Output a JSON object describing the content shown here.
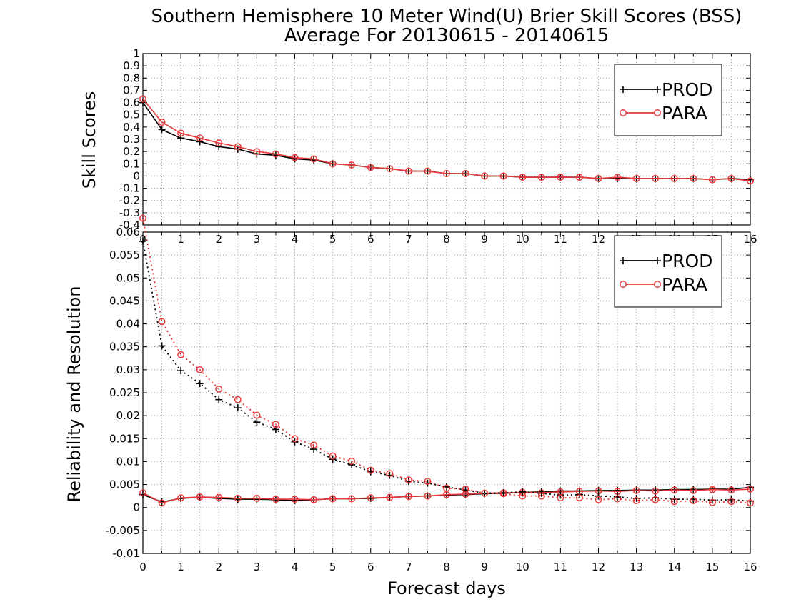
{
  "chart_data": [
    {
      "type": "line",
      "title": "Southern Hemisphere 10 Meter Wind(U) Brier Skill Scores (BSS)",
      "subtitle": "Average For 20130615 - 20140615",
      "ylabel": "Skill Scores",
      "xlabel": "",
      "xlim": [
        0,
        16
      ],
      "ylim": [
        -0.4,
        1
      ],
      "grid": true,
      "legend": "top-right",
      "x": [
        0,
        0.5,
        1,
        1.5,
        2,
        2.5,
        3,
        3.5,
        4,
        4.5,
        5,
        5.5,
        6,
        6.5,
        7,
        7.5,
        8,
        8.5,
        9,
        9.5,
        10,
        10.5,
        11,
        11.5,
        12,
        12.5,
        13,
        13.5,
        14,
        14.5,
        15,
        15.5,
        16
      ],
      "xticks": [
        "0",
        "1",
        "2",
        "3",
        "4",
        "5",
        "6",
        "7",
        "8",
        "9",
        "10",
        "11",
        "12",
        "13",
        "14",
        "15",
        "16"
      ],
      "yticks": [
        "-0.4",
        "-0.3",
        "-0.2",
        "-0.1",
        "0",
        "0.1",
        "0.2",
        "0.3",
        "0.4",
        "0.5",
        "0.6",
        "0.7",
        "0.8",
        "0.9",
        "1"
      ],
      "series": [
        {
          "name": "PROD",
          "color": "#000000",
          "marker": "plus",
          "style": "solid",
          "values": [
            0.6,
            0.38,
            0.31,
            0.28,
            0.24,
            0.22,
            0.18,
            0.17,
            0.14,
            0.13,
            0.1,
            0.09,
            0.07,
            0.06,
            0.04,
            0.04,
            0.02,
            0.02,
            0.0,
            0.0,
            -0.01,
            -0.01,
            -0.01,
            -0.01,
            -0.02,
            -0.02,
            -0.02,
            -0.02,
            -0.02,
            -0.02,
            -0.03,
            -0.02,
            -0.03
          ]
        },
        {
          "name": "PARA",
          "color": "#e8393a",
          "marker": "circle",
          "style": "solid",
          "values": [
            0.63,
            0.44,
            0.35,
            0.31,
            0.27,
            0.24,
            0.2,
            0.18,
            0.15,
            0.14,
            0.1,
            0.09,
            0.07,
            0.06,
            0.04,
            0.04,
            0.02,
            0.02,
            0.0,
            0.0,
            -0.01,
            -0.01,
            -0.01,
            -0.01,
            -0.02,
            -0.01,
            -0.02,
            -0.02,
            -0.02,
            -0.02,
            -0.03,
            -0.02,
            -0.04
          ]
        }
      ]
    },
    {
      "type": "line",
      "ylabel": "Reliability and Resolution",
      "xlabel": "Forecast days",
      "xlim": [
        0,
        16
      ],
      "ylim": [
        -0.01,
        0.06
      ],
      "grid": true,
      "legend": "top-right",
      "x": [
        0,
        0.5,
        1,
        1.5,
        2,
        2.5,
        3,
        3.5,
        4,
        4.5,
        5,
        5.5,
        6,
        6.5,
        7,
        7.5,
        8,
        8.5,
        9,
        9.5,
        10,
        10.5,
        11,
        11.5,
        12,
        12.5,
        13,
        13.5,
        14,
        14.5,
        15,
        15.5,
        16
      ],
      "xticks": [
        "0",
        "1",
        "2",
        "3",
        "4",
        "5",
        "6",
        "7",
        "8",
        "9",
        "10",
        "11",
        "12",
        "13",
        "14",
        "15",
        "16"
      ],
      "yticks": [
        "-0.01",
        "-0.005",
        "0",
        "0.005",
        "0.01",
        "0.015",
        "0.02",
        "0.025",
        "0.03",
        "0.035",
        "0.04",
        "0.045",
        "0.05",
        "0.055",
        "0.06"
      ],
      "series": [
        {
          "name": "PROD",
          "color": "#000000",
          "marker": "plus",
          "style": "solid",
          "values": [
            0.0028,
            0.0012,
            0.002,
            0.0022,
            0.002,
            0.0018,
            0.0018,
            0.0017,
            0.0015,
            0.0017,
            0.0019,
            0.0019,
            0.002,
            0.0022,
            0.0024,
            0.0025,
            0.0027,
            0.0028,
            0.003,
            0.0031,
            0.0033,
            0.0034,
            0.0036,
            0.0036,
            0.0037,
            0.0037,
            0.0038,
            0.0038,
            0.0039,
            0.0039,
            0.004,
            0.004,
            0.0044
          ]
        },
        {
          "name": "PARA",
          "color": "#e8393a",
          "marker": "circle",
          "style": "solid",
          "values": [
            0.0032,
            0.001,
            0.0021,
            0.0023,
            0.0022,
            0.002,
            0.002,
            0.0018,
            0.0018,
            0.0017,
            0.0019,
            0.0019,
            0.0021,
            0.0022,
            0.0024,
            0.0025,
            0.0028,
            0.0029,
            0.0031,
            0.0032,
            0.0033,
            0.0032,
            0.0034,
            0.0035,
            0.0036,
            0.0035,
            0.0037,
            0.0036,
            0.0038,
            0.0037,
            0.0039,
            0.0038,
            0.004
          ]
        },
        {
          "name": "PROD",
          "color": "#000000",
          "marker": "plus",
          "style": "dotted",
          "in_legend": false,
          "values": [
            0.058,
            0.0352,
            0.0298,
            0.027,
            0.0235,
            0.0217,
            0.0186,
            0.017,
            0.0143,
            0.0127,
            0.0105,
            0.0093,
            0.0078,
            0.007,
            0.0057,
            0.0053,
            0.0045,
            0.0038,
            0.0031,
            0.0032,
            0.0034,
            0.0031,
            0.0027,
            0.0028,
            0.0025,
            0.0023,
            0.002,
            0.0021,
            0.0018,
            0.0018,
            0.0016,
            0.0017,
            0.0014
          ]
        },
        {
          "name": "PARA",
          "color": "#e8393a",
          "marker": "circle",
          "style": "dotted",
          "in_legend": false,
          "values": [
            0.063,
            0.0405,
            0.0333,
            0.03,
            0.0258,
            0.0235,
            0.0201,
            0.0181,
            0.015,
            0.0136,
            0.0112,
            0.0101,
            0.0081,
            0.0074,
            0.006,
            0.0057,
            0.0042,
            0.004,
            0.0031,
            0.003,
            0.0025,
            0.0025,
            0.0021,
            0.0021,
            0.0017,
            0.0019,
            0.0015,
            0.0017,
            0.0013,
            0.0015,
            0.0011,
            0.0013,
            0.001
          ]
        }
      ]
    }
  ]
}
